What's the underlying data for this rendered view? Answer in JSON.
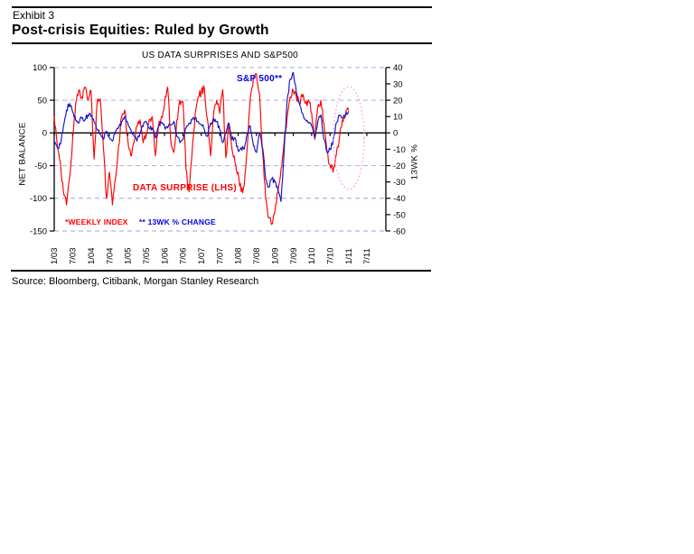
{
  "page": {
    "exhibit_label": "Exhibit 3",
    "title": "Post-crisis Equities: Ruled by Growth",
    "source": "Source: Bloomberg, Citibank, Morgan Stanley Research"
  },
  "chart_data": {
    "type": "line",
    "title": "US DATA SURPRISES AND S&P500",
    "left_axis": {
      "label": "NET BALANCE",
      "ticks": [
        100,
        50,
        0,
        -50,
        -100,
        -150
      ],
      "range": [
        -150,
        100
      ]
    },
    "right_axis": {
      "label": "13WK %",
      "ticks": [
        40,
        30,
        20,
        10,
        0,
        -10,
        -20,
        -30,
        -40,
        -50,
        -60
      ],
      "range": [
        -60,
        40
      ]
    },
    "x_axis": {
      "ticks": [
        "1/03",
        "7/03",
        "1/04",
        "7/04",
        "1/05",
        "7/05",
        "1/06",
        "7/06",
        "1/07",
        "7/07",
        "1/08",
        "7/08",
        "1/09",
        "7/09",
        "1/10",
        "7/10",
        "1/11",
        "7/11"
      ],
      "start": "1/03",
      "step_months_per_point": 1
    },
    "annotations": {
      "sp500_label": "S&P 500**",
      "data_surprise_label": "DATA SURPRISE (LHS)",
      "footnote_weekly": "*WEEKLY INDEX",
      "footnote_13wk": "** 13WK % CHANGE",
      "highlight": "dotted ellipse around late-2010 rebound"
    },
    "colors": {
      "red": "#FF0000",
      "blue": "#1414C8",
      "grid": "#B4B4E6",
      "ellipse": "#FF9EE8"
    },
    "legend_position": "in-plot",
    "grid": "dashed horizontal at every 50 (LHS) / 20 (RHS)",
    "series": [
      {
        "name": "DATA SURPRISE (LHS)",
        "axis": "left",
        "color_key": "red",
        "values": [
          25,
          -20,
          -45,
          -90,
          -110,
          -70,
          -10,
          45,
          65,
          55,
          70,
          50,
          65,
          -40,
          45,
          52,
          -20,
          -100,
          -60,
          -110,
          -70,
          -20,
          25,
          35,
          -10,
          -35,
          -15,
          10,
          20,
          -15,
          0,
          20,
          25,
          -35,
          10,
          25,
          45,
          70,
          -10,
          -30,
          20,
          50,
          47,
          -55,
          -90,
          -30,
          30,
          55,
          62,
          68,
          20,
          -35,
          30,
          50,
          30,
          66,
          -38,
          15,
          -25,
          -45,
          -60,
          -90,
          -80,
          -20,
          55,
          85,
          90,
          60,
          -30,
          -100,
          -130,
          -140,
          -120,
          -90,
          -55,
          -15,
          25,
          55,
          65,
          55,
          45,
          55,
          45,
          50,
          30,
          -10,
          40,
          50,
          15,
          -30,
          -50,
          -60,
          -35,
          -10,
          20,
          25,
          35
        ]
      },
      {
        "name": "S&P 500** 13WK % CHANGE",
        "axis": "right",
        "color_key": "blue",
        "values": [
          -5,
          -9,
          -7,
          4,
          14,
          18,
          13,
          8,
          6,
          9,
          8,
          11,
          10,
          7,
          2,
          -1,
          -4,
          1,
          -3,
          -5,
          1,
          3,
          7,
          10,
          6,
          2,
          -2,
          -5,
          0,
          4,
          7,
          3,
          3,
          -3,
          4,
          6,
          4,
          3,
          5,
          7,
          -2,
          -6,
          -4,
          3,
          6,
          8,
          9,
          7,
          5,
          2,
          -2,
          6,
          9,
          7,
          2,
          -6,
          0,
          6,
          -4,
          -3,
          -11,
          -9,
          -10,
          0,
          4,
          -8,
          -12,
          0,
          -9,
          -28,
          -33,
          -28,
          -30,
          -35,
          -42,
          -12,
          20,
          33,
          37,
          25,
          18,
          12,
          8,
          6,
          4,
          -3,
          7,
          11,
          -4,
          -12,
          -10,
          -5,
          6,
          11,
          9,
          11,
          13
        ]
      }
    ]
  }
}
